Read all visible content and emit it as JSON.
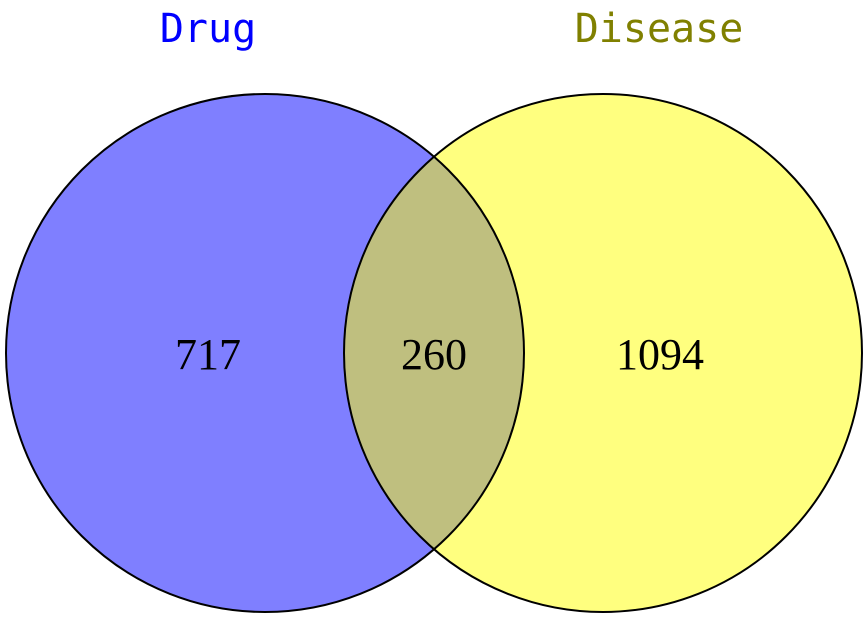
{
  "sets": [
    {
      "name": "Drug",
      "fill": "#7f7fff",
      "label_color": "#0000ff"
    },
    {
      "name": "Disease",
      "fill": "#ffff7f",
      "label_color": "#808000"
    }
  ],
  "regions": {
    "drug_only": "717",
    "intersection": "260",
    "disease_only": "1094"
  },
  "intersection_fill": "#bfbf7f",
  "outline_color": "#000000"
}
